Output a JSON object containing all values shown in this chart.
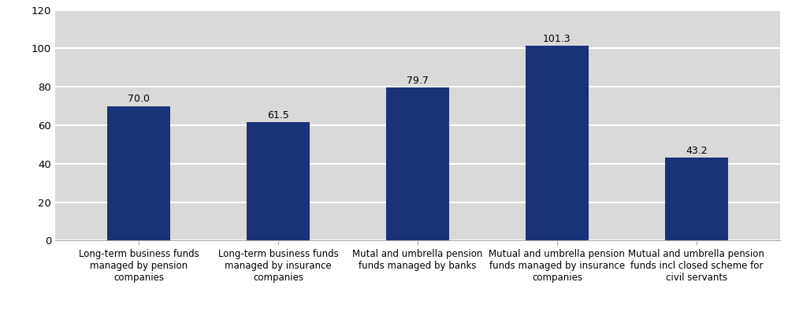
{
  "categories": [
    "Long-term business funds\nmanaged by pension\ncompanies",
    "Long-term business funds\nmanaged by insurance\ncompanies",
    "Mutal and umbrella pension\nfunds managed by banks",
    "Mutual and umbrella pension\nfunds managed by insurance\ncompanies",
    "Mutual and umbrella pension\nfunds incl closed scheme for\ncivil servants"
  ],
  "values": [
    70.0,
    61.5,
    79.7,
    101.3,
    43.2
  ],
  "bar_color": "#1a3278",
  "figure_bg_color": "#ffffff",
  "axes_bg_color": "#d9d9d9",
  "ylim": [
    0,
    120
  ],
  "yticks": [
    0,
    20,
    40,
    60,
    80,
    100,
    120
  ],
  "bar_width": 0.45,
  "label_fontsize": 8.5,
  "tick_fontsize": 9.5,
  "value_fontsize": 9.0,
  "grid_color": "#ffffff",
  "grid_linewidth": 1.5
}
